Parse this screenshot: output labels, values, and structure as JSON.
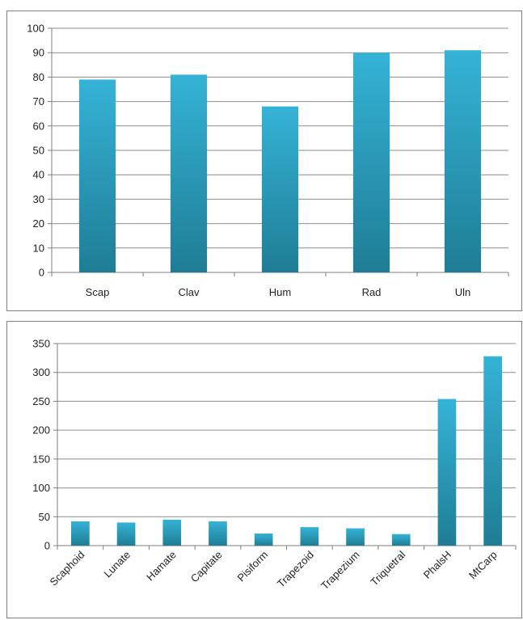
{
  "colors": {
    "bar_top": "#35b3d7",
    "bar_bottom": "#1f7d95",
    "grid": "#8c8c8c"
  },
  "chart_data": [
    {
      "type": "bar",
      "title": "",
      "xlabel": "",
      "ylabel": "",
      "categories": [
        "Scap",
        "Clav",
        "Hum",
        "Rad",
        "Uln"
      ],
      "values": [
        79,
        81,
        68,
        90,
        91
      ],
      "ylim": [
        0,
        100
      ],
      "yticks": [
        0,
        10,
        20,
        30,
        40,
        50,
        60,
        70,
        80,
        90,
        100
      ],
      "grid": true,
      "legend": "none"
    },
    {
      "type": "bar",
      "title": "",
      "xlabel": "",
      "ylabel": "",
      "categories": [
        "Scaphoid",
        "Lunate",
        "Hamate",
        "Capitate",
        "Pisiform",
        "Trapezoid",
        "Trapezium",
        "Triquetral",
        "PhalsH",
        "MtCarp"
      ],
      "values": [
        42,
        40,
        45,
        42,
        21,
        32,
        30,
        20,
        254,
        328
      ],
      "ylim": [
        0,
        350
      ],
      "yticks": [
        0,
        50,
        100,
        150,
        200,
        250,
        300,
        350
      ],
      "grid": true,
      "legend": "none"
    }
  ]
}
